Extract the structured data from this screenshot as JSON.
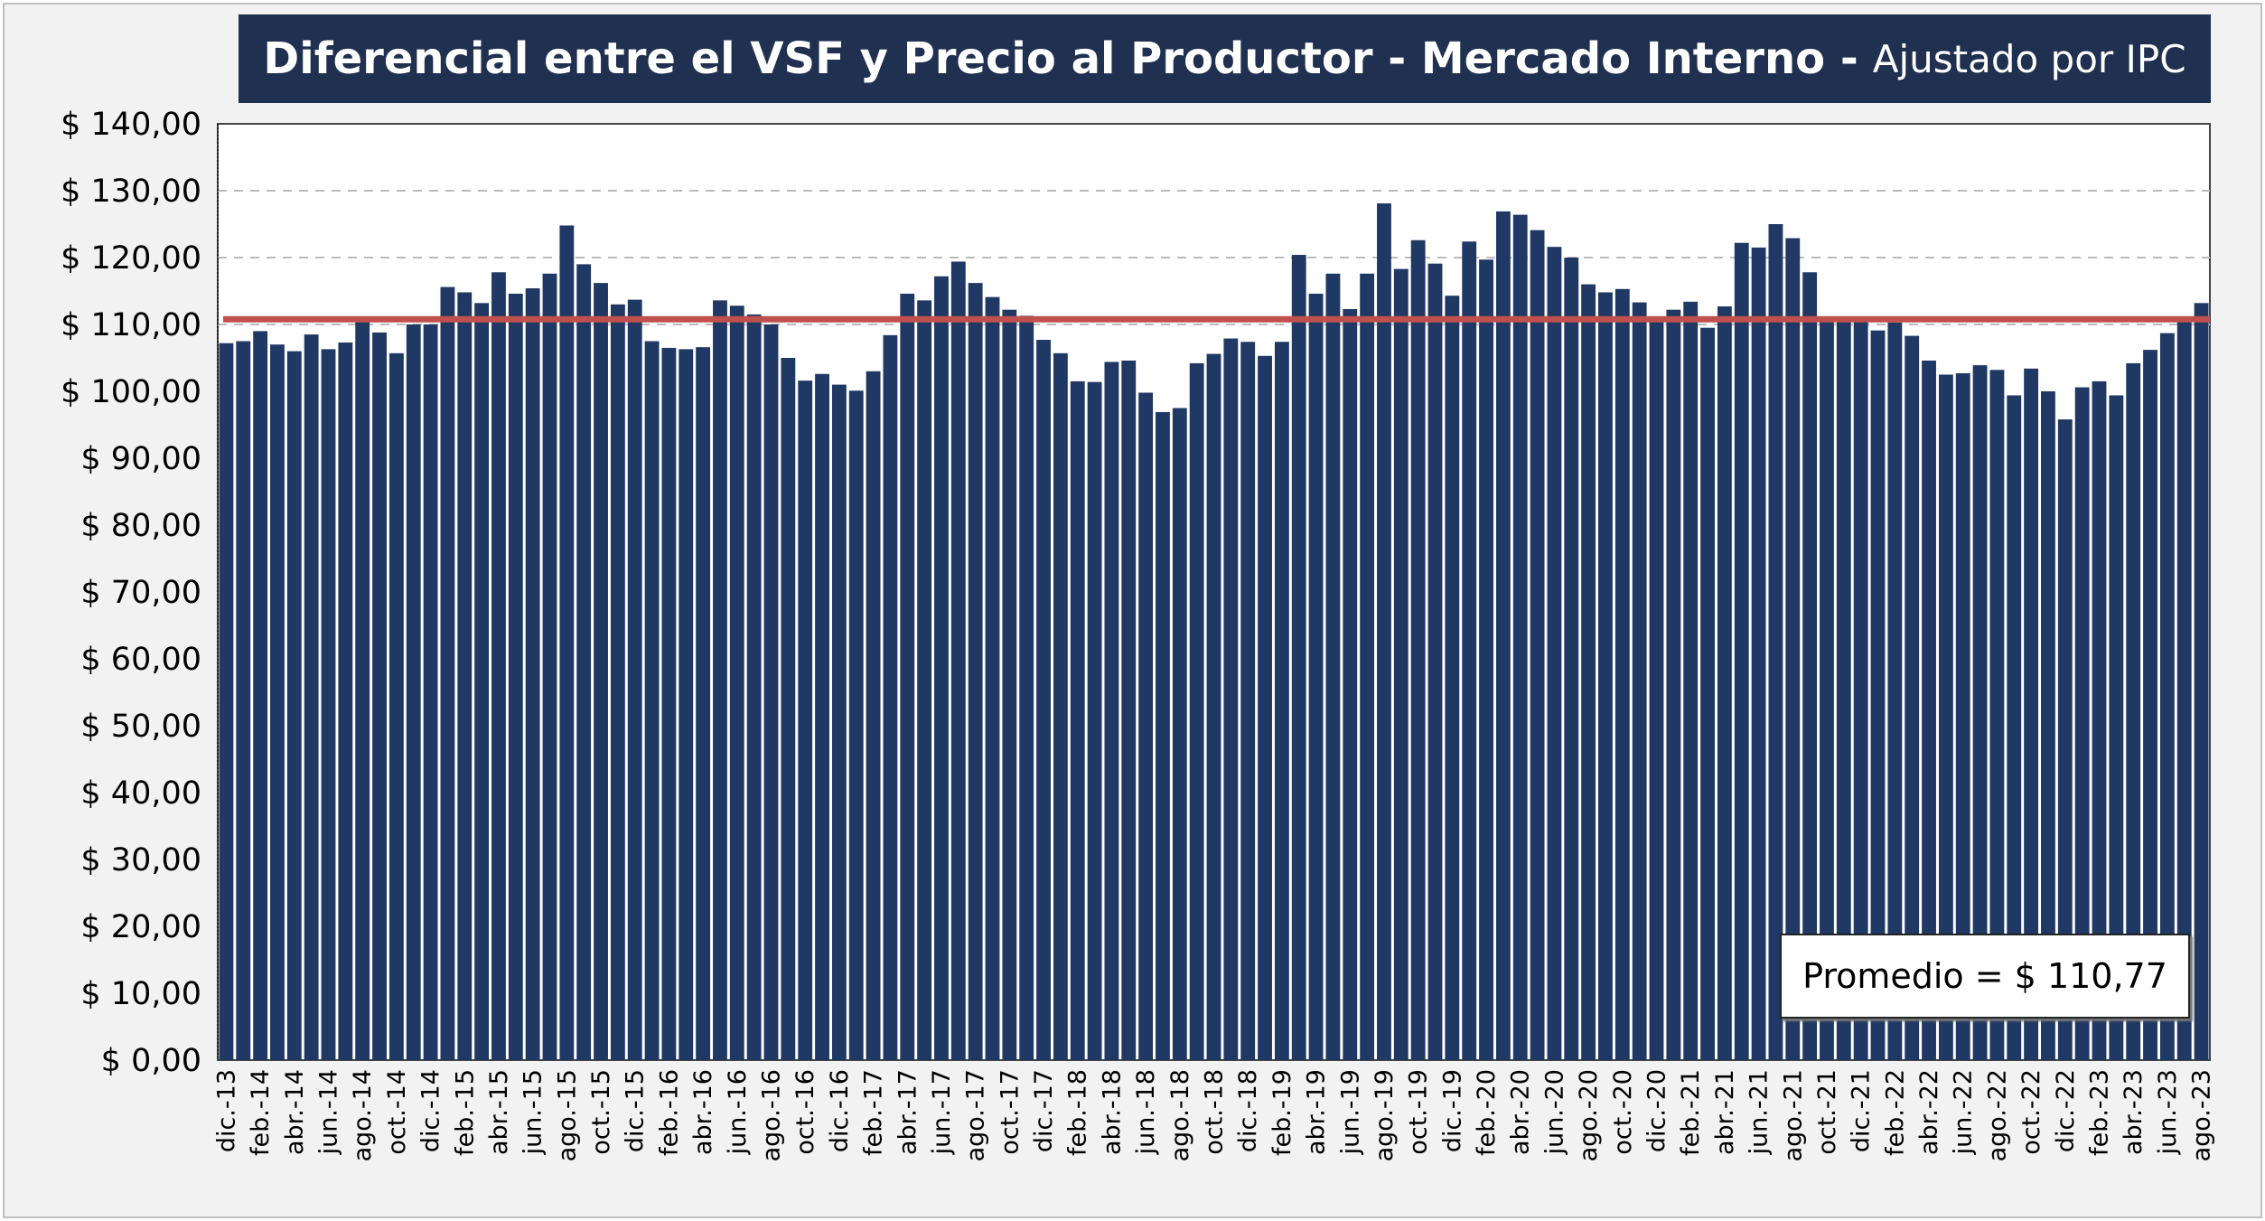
{
  "chart_data": {
    "type": "bar",
    "title": "Diferencial entre el VSF y Precio al Productor - Mercado Interno -",
    "subtitle": "Ajustado por IPC",
    "xlabel": "",
    "ylabel": "",
    "ylim": [
      0,
      140
    ],
    "grid": true,
    "colors": {
      "bar": "#1f3864",
      "average_line": "#c0504d",
      "title_bg": "#1f3050"
    },
    "y_ticks": [
      "$ 0,00",
      "$ 10,00",
      "$ 20,00",
      "$ 30,00",
      "$ 40,00",
      "$ 50,00",
      "$ 60,00",
      "$ 70,00",
      "$ 80,00",
      "$ 90,00",
      "$ 100,00",
      "$ 110,00",
      "$ 120,00",
      "$ 130,00",
      "$ 140,00"
    ],
    "x_tick_labels": [
      "dic.-13",
      "feb.-14",
      "abr.-14",
      "jun.-14",
      "ago.-14",
      "oct.-14",
      "dic.-14",
      "feb.-15",
      "abr.-15",
      "jun.-15",
      "ago.-15",
      "oct.-15",
      "dic.-15",
      "feb.-16",
      "abr.-16",
      "jun.-16",
      "ago.-16",
      "oct.-16",
      "dic.-16",
      "feb.-17",
      "abr.-17",
      "jun.-17",
      "ago.-17",
      "oct.-17",
      "dic.-17",
      "feb.-18",
      "abr.-18",
      "jun.-18",
      "ago.-18",
      "oct.-18",
      "dic.-18",
      "feb.-19",
      "abr.-19",
      "jun.-19",
      "ago.-19",
      "oct.-19",
      "dic.-19",
      "feb.-20",
      "abr.-20",
      "jun.-20",
      "ago.-20",
      "oct.-20",
      "dic.-20",
      "feb.-21",
      "abr.-21",
      "jun.-21",
      "ago.-21",
      "oct.-21",
      "dic.-21",
      "feb.-22",
      "abr.-22",
      "jun.-22",
      "ago.-22",
      "oct.-22",
      "dic.-22",
      "feb.-23",
      "abr.-23",
      "jun.-23",
      "ago.-23"
    ],
    "values": [
      107.2,
      107.5,
      109.0,
      107.0,
      106.0,
      108.5,
      106.3,
      107.3,
      110.6,
      108.8,
      105.7,
      110.0,
      110.0,
      115.6,
      114.8,
      113.2,
      117.8,
      114.6,
      115.4,
      117.6,
      124.8,
      119.0,
      116.2,
      113.0,
      113.7,
      107.5,
      106.5,
      106.3,
      106.6,
      113.6,
      112.8,
      111.5,
      110.0,
      105.0,
      101.6,
      102.6,
      101.0,
      100.1,
      103.0,
      108.4,
      114.6,
      113.6,
      117.2,
      119.4,
      116.2,
      114.1,
      112.2,
      111.3,
      107.7,
      105.7,
      101.5,
      101.4,
      104.4,
      104.6,
      99.8,
      96.9,
      97.5,
      104.2,
      105.6,
      107.9,
      107.4,
      105.3,
      107.4,
      120.4,
      114.6,
      117.6,
      112.3,
      117.6,
      128.1,
      118.3,
      122.6,
      119.1,
      114.3,
      122.4,
      119.7,
      126.9,
      126.4,
      124.1,
      121.6,
      120.0,
      116.0,
      114.8,
      115.3,
      113.3,
      111.2,
      112.2,
      113.4,
      109.5,
      112.7,
      122.2,
      121.5,
      125.0,
      122.9,
      117.8,
      111.2,
      110.5,
      110.6,
      109.1,
      110.3,
      108.3,
      104.6,
      102.5,
      102.7,
      103.9,
      103.2,
      99.4,
      103.4,
      100.0,
      95.8,
      100.6,
      101.5,
      99.4,
      104.2,
      106.2,
      108.7,
      110.6,
      113.2
    ],
    "average": 110.77,
    "average_label": "Promedio = $ 110,77"
  }
}
